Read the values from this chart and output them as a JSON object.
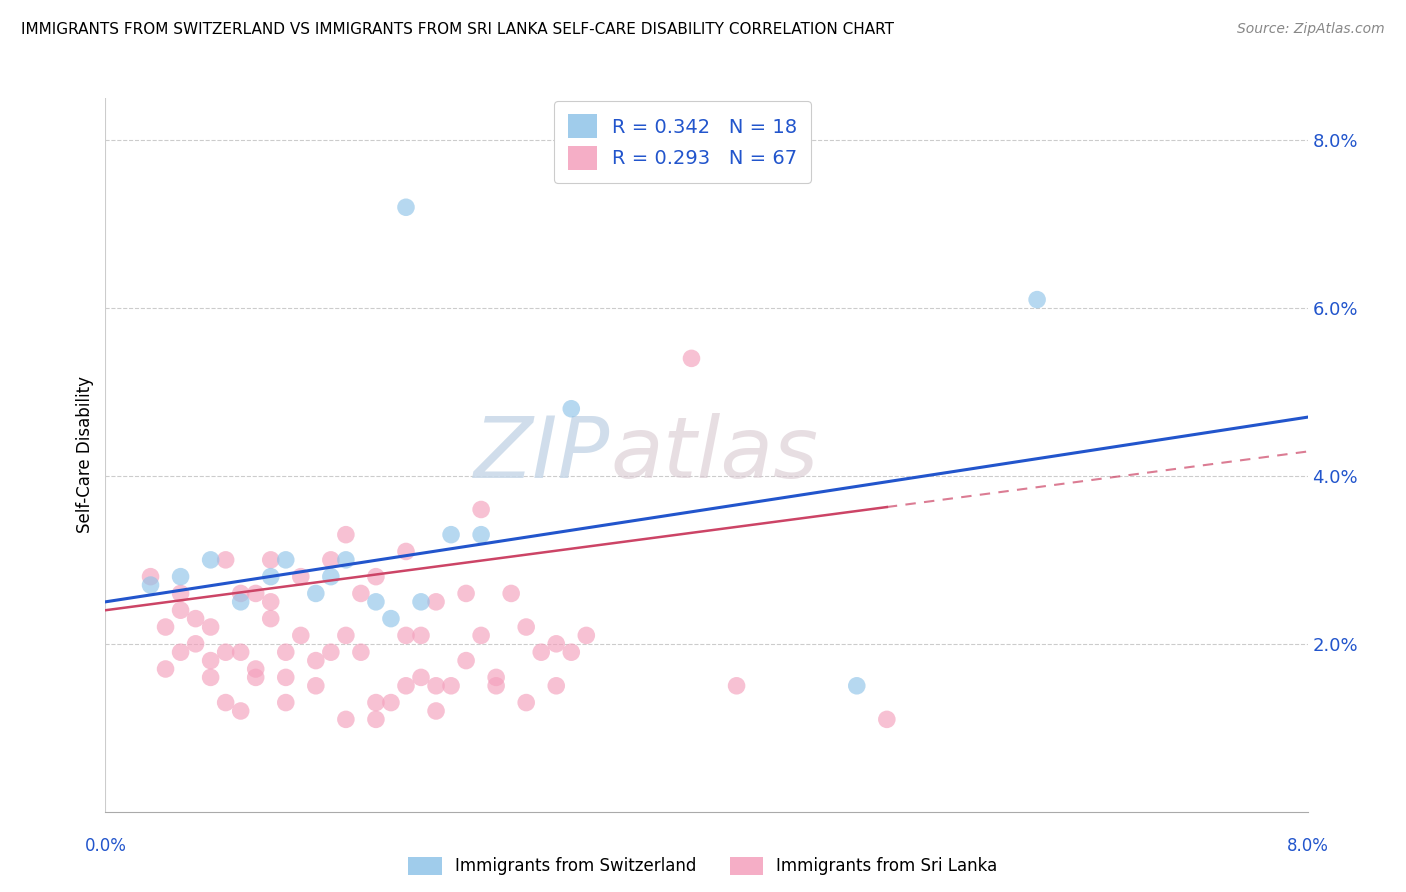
{
  "title": "IMMIGRANTS FROM SWITZERLAND VS IMMIGRANTS FROM SRI LANKA SELF-CARE DISABILITY CORRELATION CHART",
  "source": "Source: ZipAtlas.com",
  "ylabel": "Self-Care Disability",
  "legend_label1": "Immigrants from Switzerland",
  "legend_label2": "Immigrants from Sri Lanka",
  "legend_R1": "R = 0.342",
  "legend_N1": "N = 18",
  "legend_R2": "R = 0.293",
  "legend_N2": "N = 67",
  "xlim": [
    0.0,
    0.08
  ],
  "ylim": [
    0.0,
    0.085
  ],
  "yticks": [
    0.02,
    0.04,
    0.06,
    0.08
  ],
  "ytick_labels": [
    "2.0%",
    "4.0%",
    "6.0%",
    "8.0%"
  ],
  "color_swiss": "#90c4e8",
  "color_srilanka": "#f4a0bc",
  "line_color_swiss": "#2255cc",
  "line_color_srilanka": "#cc4466",
  "background": "#ffffff",
  "swiss_x": [
    0.02,
    0.062,
    0.05,
    0.031,
    0.003,
    0.005,
    0.007,
    0.009,
    0.011,
    0.012,
    0.014,
    0.015,
    0.016,
    0.018,
    0.019,
    0.021,
    0.023,
    0.025
  ],
  "swiss_y": [
    0.072,
    0.061,
    0.015,
    0.048,
    0.027,
    0.028,
    0.03,
    0.025,
    0.028,
    0.03,
    0.026,
    0.028,
    0.03,
    0.025,
    0.023,
    0.025,
    0.033,
    0.033
  ],
  "srilanka_x": [
    0.039,
    0.003,
    0.004,
    0.005,
    0.005,
    0.006,
    0.007,
    0.007,
    0.008,
    0.008,
    0.009,
    0.009,
    0.01,
    0.01,
    0.011,
    0.011,
    0.012,
    0.012,
    0.013,
    0.013,
    0.014,
    0.015,
    0.015,
    0.016,
    0.016,
    0.017,
    0.017,
    0.018,
    0.018,
    0.019,
    0.02,
    0.02,
    0.021,
    0.021,
    0.022,
    0.022,
    0.023,
    0.024,
    0.025,
    0.025,
    0.026,
    0.027,
    0.028,
    0.029,
    0.03,
    0.031,
    0.032,
    0.004,
    0.006,
    0.008,
    0.01,
    0.012,
    0.014,
    0.016,
    0.018,
    0.02,
    0.022,
    0.024,
    0.026,
    0.028,
    0.03,
    0.042,
    0.052,
    0.005,
    0.007,
    0.009,
    0.011
  ],
  "srilanka_y": [
    0.054,
    0.028,
    0.022,
    0.019,
    0.026,
    0.02,
    0.016,
    0.022,
    0.019,
    0.03,
    0.019,
    0.026,
    0.016,
    0.026,
    0.023,
    0.03,
    0.016,
    0.019,
    0.021,
    0.028,
    0.018,
    0.019,
    0.03,
    0.021,
    0.033,
    0.019,
    0.026,
    0.013,
    0.028,
    0.013,
    0.021,
    0.031,
    0.016,
    0.021,
    0.015,
    0.025,
    0.015,
    0.026,
    0.021,
    0.036,
    0.015,
    0.026,
    0.013,
    0.019,
    0.015,
    0.019,
    0.021,
    0.017,
    0.023,
    0.013,
    0.017,
    0.013,
    0.015,
    0.011,
    0.011,
    0.015,
    0.012,
    0.018,
    0.016,
    0.022,
    0.02,
    0.015,
    0.011,
    0.024,
    0.018,
    0.012,
    0.025
  ]
}
